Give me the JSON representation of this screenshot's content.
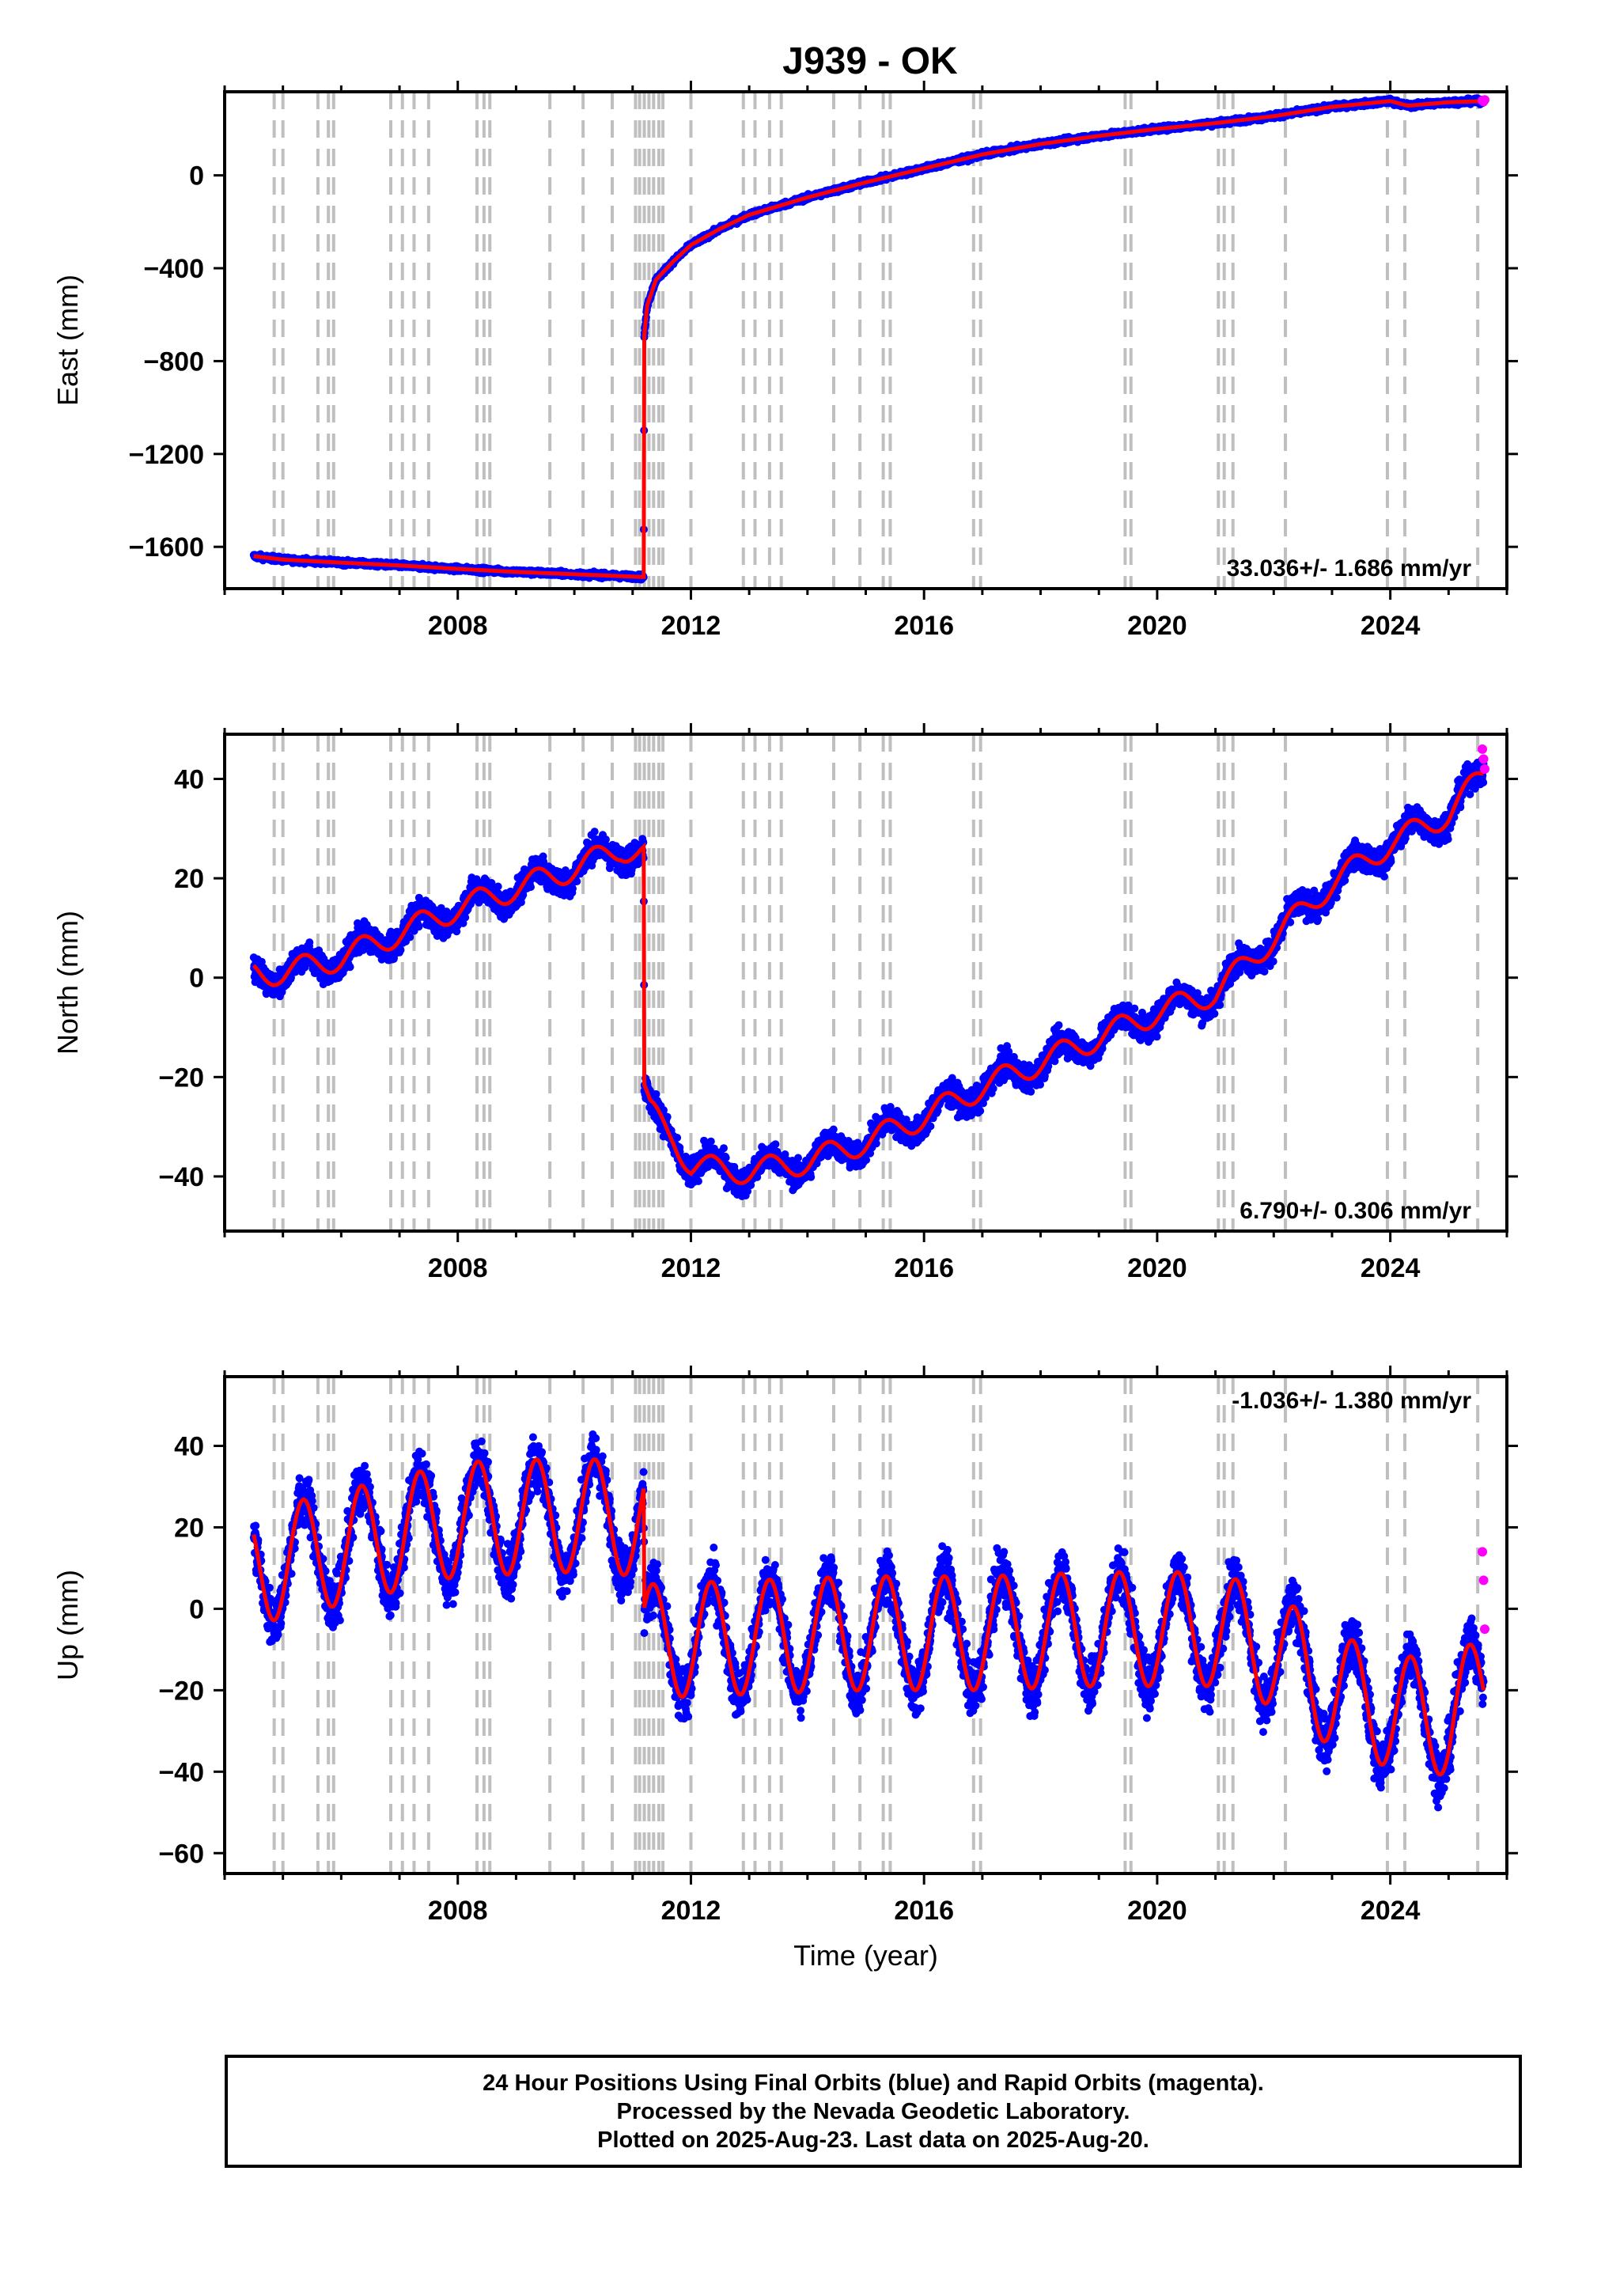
{
  "title": "J939 - OK",
  "colors": {
    "final_orbits": "#0000ff",
    "rapid_orbits": "#ff00ff",
    "model": "#ff0000",
    "event_lines": "#bfbfbf",
    "frame": "#000000"
  },
  "footer": {
    "line1": "24 Hour Positions Using Final Orbits (blue) and Rapid Orbits (magenta).",
    "line2": "Processed by the Nevada Geodetic Laboratory.",
    "line3": "Plotted on 2025-Aug-23. Last data on 2025-Aug-20."
  },
  "chart_data": [
    {
      "type": "scatter",
      "component": "East",
      "ylabel": "East (mm)",
      "xlabel": "",
      "rate_text": "33.036+/- 1.686 mm/yr",
      "rate_position": "bottom-right",
      "xlim": [
        2004.0,
        2026.0
      ],
      "ylim": [
        -1780,
        360
      ],
      "xticks": [
        2008,
        2012,
        2016,
        2020,
        2024
      ],
      "yticks": [
        -1600,
        -1200,
        -800,
        -400,
        0
      ],
      "series": [
        {
          "name": "Final Orbits",
          "color": "#0000ff"
        },
        {
          "name": "Rapid Orbits",
          "color": "#ff00ff"
        },
        {
          "name": "Model",
          "color": "#ff0000"
        }
      ],
      "model_points": [
        [
          2004.5,
          -1640
        ],
        [
          2005,
          -1655
        ],
        [
          2006,
          -1668
        ],
        [
          2007,
          -1680
        ],
        [
          2008,
          -1695
        ],
        [
          2009,
          -1708
        ],
        [
          2010,
          -1718
        ],
        [
          2011.19,
          -1730
        ],
        [
          2011.2,
          -690
        ],
        [
          2011.25,
          -560
        ],
        [
          2011.4,
          -450
        ],
        [
          2011.7,
          -370
        ],
        [
          2012,
          -300
        ],
        [
          2012.5,
          -230
        ],
        [
          2013,
          -170
        ],
        [
          2014,
          -95
        ],
        [
          2015,
          -30
        ],
        [
          2016,
          30
        ],
        [
          2017,
          90
        ],
        [
          2018,
          135
        ],
        [
          2019,
          170
        ],
        [
          2020,
          200
        ],
        [
          2021,
          225
        ],
        [
          2022,
          255
        ],
        [
          2023,
          295
        ],
        [
          2024,
          320
        ],
        [
          2024.3,
          300
        ],
        [
          2025,
          315
        ],
        [
          2025.6,
          320
        ]
      ],
      "noise_amplitude": 10,
      "rapid_points": [
        [
          2025.58,
          322
        ],
        [
          2025.6,
          318
        ],
        [
          2025.62,
          325
        ]
      ]
    },
    {
      "type": "scatter",
      "component": "North",
      "ylabel": "North (mm)",
      "xlabel": "",
      "rate_text": "6.790+/- 0.306 mm/yr",
      "rate_position": "bottom-right",
      "xlim": [
        2004.0,
        2026.0
      ],
      "ylim": [
        -51,
        49
      ],
      "xticks": [
        2008,
        2012,
        2016,
        2020,
        2024
      ],
      "yticks": [
        -40,
        -20,
        0,
        20,
        40
      ],
      "series": [
        {
          "name": "Final Orbits",
          "color": "#0000ff"
        },
        {
          "name": "Rapid Orbits",
          "color": "#ff00ff"
        },
        {
          "name": "Model",
          "color": "#ff0000"
        }
      ],
      "model_points": [
        [
          2004.5,
          1
        ],
        [
          2005,
          1
        ],
        [
          2006,
          4
        ],
        [
          2007,
          9
        ],
        [
          2008,
          14
        ],
        [
          2009,
          18
        ],
        [
          2010,
          22
        ],
        [
          2010.8,
          26
        ],
        [
          2011.19,
          25
        ],
        [
          2011.2,
          -23
        ],
        [
          2011.3,
          -27
        ],
        [
          2011.7,
          -32
        ],
        [
          2012,
          -38
        ],
        [
          2013,
          -39
        ],
        [
          2014,
          -37
        ],
        [
          2015,
          -33
        ],
        [
          2016,
          -28
        ],
        [
          2017,
          -22
        ],
        [
          2018,
          -17
        ],
        [
          2019,
          -12
        ],
        [
          2020,
          -7
        ],
        [
          2021,
          -3
        ],
        [
          2022,
          8
        ],
        [
          2023,
          19
        ],
        [
          2024,
          27
        ],
        [
          2025,
          33
        ],
        [
          2025.6,
          41
        ]
      ],
      "seasonal_amplitude": 2.5,
      "noise_amplitude": 2.5,
      "rapid_points": [
        [
          2025.58,
          46
        ],
        [
          2025.6,
          44
        ],
        [
          2025.62,
          42
        ]
      ]
    },
    {
      "type": "scatter",
      "component": "Up",
      "ylabel": "Up (mm)",
      "xlabel": "Time (year)",
      "rate_text": "-1.036+/- 1.380 mm/yr",
      "rate_position": "top-right",
      "xlim": [
        2004.0,
        2026.0
      ],
      "ylim": [
        -65,
        57
      ],
      "xticks": [
        2008,
        2012,
        2016,
        2020,
        2024
      ],
      "yticks": [
        -60,
        -40,
        -20,
        0,
        20,
        40
      ],
      "series": [
        {
          "name": "Final Orbits",
          "color": "#0000ff"
        },
        {
          "name": "Rapid Orbits",
          "color": "#ff00ff"
        },
        {
          "name": "Model",
          "color": "#ff0000"
        }
      ],
      "model_points": [
        [
          2004.5,
          10
        ],
        [
          2006,
          15
        ],
        [
          2008,
          22
        ],
        [
          2010,
          23
        ],
        [
          2011.19,
          22
        ],
        [
          2011.2,
          -8
        ],
        [
          2013,
          -7
        ],
        [
          2015,
          -6
        ],
        [
          2017,
          -6
        ],
        [
          2019,
          -5
        ],
        [
          2021,
          -5
        ],
        [
          2022,
          -10
        ],
        [
          2023,
          -20
        ],
        [
          2024,
          -25
        ],
        [
          2025,
          -27
        ],
        [
          2025.6,
          -20
        ]
      ],
      "seasonal_amplitude": 14,
      "noise_amplitude": 6,
      "rapid_points": [
        [
          2025.58,
          14
        ],
        [
          2025.6,
          7
        ],
        [
          2025.62,
          -5
        ]
      ]
    }
  ],
  "event_years": [
    2004.85,
    2005.0,
    2005.6,
    2005.78,
    2005.87,
    2006.85,
    2007.05,
    2007.25,
    2007.5,
    2008.33,
    2008.45,
    2008.55,
    2009.58,
    2010.15,
    2010.65,
    2011.05,
    2011.12,
    2011.2,
    2011.28,
    2011.36,
    2011.45,
    2011.52,
    2012.0,
    2012.9,
    2013.1,
    2013.35,
    2013.55,
    2014.45,
    2014.9,
    2015.3,
    2015.42,
    2016.85,
    2016.97,
    2019.45,
    2019.55,
    2021.05,
    2021.15,
    2021.3,
    2022.2,
    2023.95,
    2024.25,
    2025.5
  ]
}
